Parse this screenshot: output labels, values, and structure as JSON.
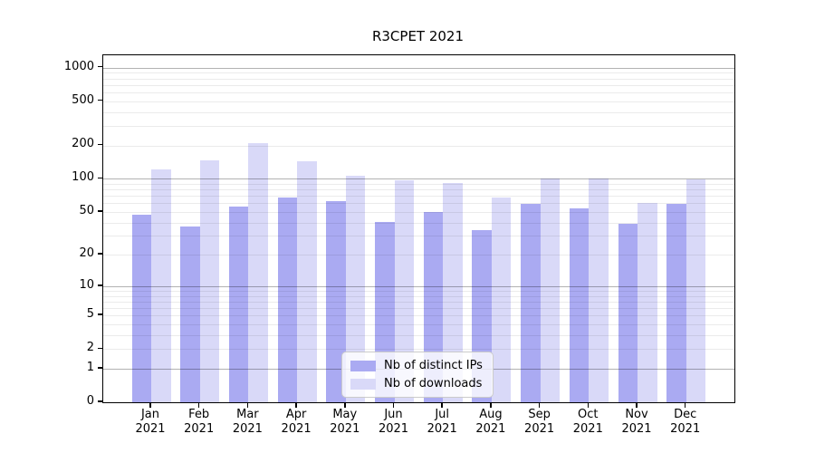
{
  "title": "R3CPET 2021",
  "chart_data": {
    "type": "bar",
    "title": "R3CPET 2021",
    "categories": [
      "Jan 2021",
      "Feb 2021",
      "Mar 2021",
      "Apr 2021",
      "May 2021",
      "Jun 2021",
      "Jul 2021",
      "Aug 2021",
      "Sep 2021",
      "Oct 2021",
      "Nov 2021",
      "Dec 2021"
    ],
    "x_months": [
      "Jan",
      "Feb",
      "Mar",
      "Apr",
      "May",
      "Jun",
      "Jul",
      "Aug",
      "Sep",
      "Oct",
      "Nov",
      "Dec"
    ],
    "x_year": "2021",
    "series": [
      {
        "name": "Nb of distinct IPs",
        "color": "#aaaaf2",
        "values": [
          47,
          37,
          56,
          67,
          63,
          40,
          50,
          34,
          59,
          54,
          39,
          59
        ]
      },
      {
        "name": "Nb of downloads",
        "color": "#d9d9f8",
        "values": [
          121,
          146,
          208,
          143,
          106,
          97,
          91,
          68,
          101,
          100,
          60,
          98
        ]
      }
    ],
    "y_scale": "log10(1+v)",
    "y_ticks": [
      0,
      1,
      2,
      5,
      10,
      20,
      50,
      100,
      200,
      500,
      1000
    ],
    "ylim": [
      0,
      1290
    ],
    "grid": "major at powers of 10, faint minors at 2-9 multiples",
    "legend_position": "lower center",
    "colors": {
      "grid_major": "#b2b2b2",
      "grid_minor": "#ebebeb",
      "axis": "#000000",
      "background": "#ffffff"
    }
  }
}
